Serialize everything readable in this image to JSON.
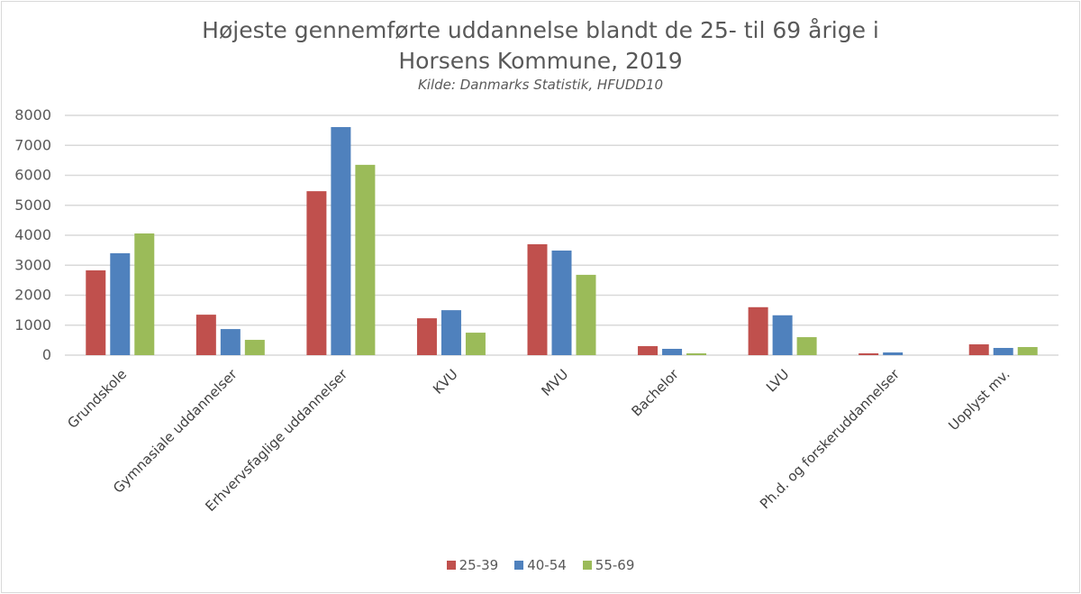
{
  "chart_data": {
    "type": "bar",
    "title": "Højeste gennemførte uddannelse blandt de 25- til 69 årige i Horsens Kommune, 2019",
    "title_line1": "Højeste gennemførte uddannelse blandt de 25- til 69 årige i",
    "title_line2": "Horsens Kommune, 2019",
    "subtitle": "Kilde: Danmarks Statistik, HFUDD10",
    "xlabel": "",
    "ylabel": "",
    "ylim": [
      0,
      8000
    ],
    "yticks": [
      0,
      1000,
      2000,
      3000,
      4000,
      5000,
      6000,
      7000,
      8000
    ],
    "grid": true,
    "legend_position": "bottom",
    "categories": [
      "Grundskole",
      "Gymnasiale uddannelser",
      "Erhvervsfaglige uddannelser",
      "KVU",
      "MVU",
      "Bachelor",
      "LVU",
      "Ph.d. og forskeruddannelser",
      "Uoplyst mv."
    ],
    "series": [
      {
        "name": "25-39",
        "color": "#c0504d",
        "values": [
          2830,
          1350,
          5470,
          1230,
          3700,
          300,
          1600,
          60,
          360
        ]
      },
      {
        "name": "40-54",
        "color": "#4f81bd",
        "values": [
          3400,
          870,
          7610,
          1500,
          3490,
          210,
          1330,
          90,
          240
        ]
      },
      {
        "name": "55-69",
        "color": "#9bbb59",
        "values": [
          4060,
          510,
          6350,
          750,
          2680,
          60,
          600,
          0,
          270
        ]
      }
    ]
  }
}
